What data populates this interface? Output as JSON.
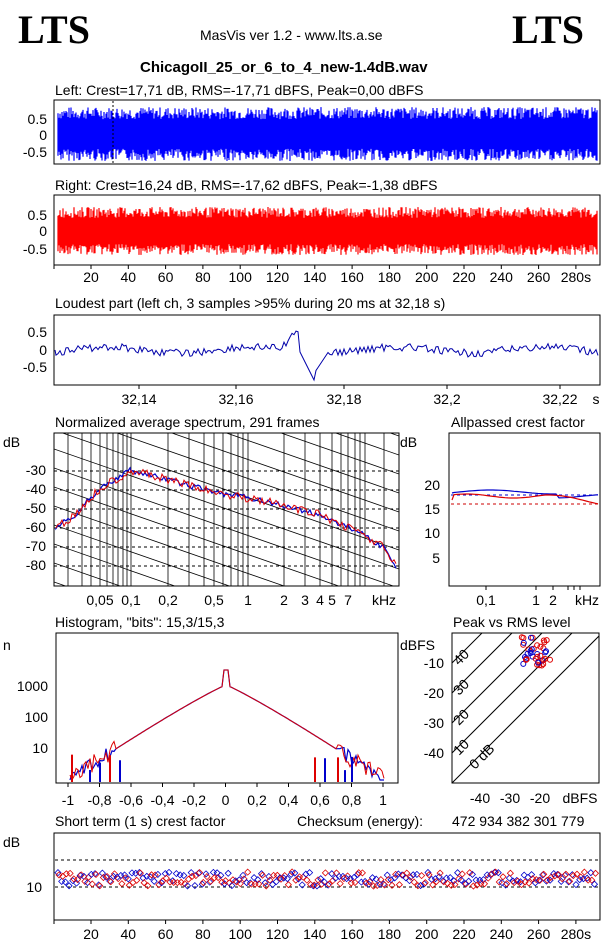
{
  "header": {
    "logo_left": "LTS",
    "logo_right": "LTS",
    "app_title": "MasVis ver 1.2 - www.lts.a.se",
    "file_name": "ChicagoII_25_or_6_to_4_new-1.4dB.wav"
  },
  "left_channel": {
    "title": "Left: Crest=17,71 dB, RMS=-17,71 dBFS, Peak=0,00 dBFS",
    "y_ticks": [
      "0.5",
      "0",
      "-0.5"
    ],
    "color": "#0000ff"
  },
  "right_channel": {
    "title": "Right: Crest=16,24 dB, RMS=-17,62 dBFS, Peak=-1,38 dBFS",
    "y_ticks": [
      "0.5",
      "0",
      "-0.5"
    ],
    "x_ticks": [
      "20",
      "40",
      "60",
      "80",
      "100",
      "120",
      "140",
      "160",
      "180",
      "200",
      "220",
      "240",
      "260",
      "280s"
    ],
    "color": "#ff0000"
  },
  "loudest": {
    "title": "Loudest part (left  ch, 3 samples >95% during 20 ms at 32,18 s)",
    "y_ticks": [
      "0.5",
      "0",
      "-0.5"
    ],
    "x_ticks": [
      "32,14",
      "32,16",
      "32,18",
      "32,2",
      "32,22",
      "s"
    ]
  },
  "spectrum": {
    "title": "Normalized average spectrum, 291 frames",
    "y_unit": "dB",
    "y_ticks": [
      "-30",
      "-40",
      "-50",
      "-60",
      "-70",
      "-80"
    ],
    "x_ticks": [
      "0,05",
      "0,1",
      "0,2",
      "0,5",
      "1",
      "2",
      "3",
      "4",
      "5",
      "7",
      "kHz"
    ]
  },
  "crest_allpass": {
    "title": "Allpassed crest factor",
    "y_unit": "dB",
    "y_ticks": [
      "20",
      "15",
      "10",
      "5"
    ],
    "x_ticks": [
      "0,1",
      "1",
      "2",
      "kHz"
    ]
  },
  "histogram": {
    "title": "Histogram, \"bits\": 15,3/15,3",
    "y_unit": "n",
    "y_ticks": [
      "1000",
      "100",
      "10"
    ],
    "x_ticks": [
      "-1",
      "-0,8",
      "-0,6",
      "-0,4",
      "-0,2",
      "0",
      "0,2",
      "0,4",
      "0,6",
      "0,8",
      "1"
    ]
  },
  "peak_rms": {
    "title": "Peak vs RMS level",
    "y_unit": "dBFS",
    "y_ticks": [
      "-10",
      "-20",
      "-30",
      "-40"
    ],
    "x_ticks": [
      "-40",
      "-30",
      "-20",
      "dBFS"
    ],
    "diagonal_labels": [
      "40",
      "30",
      "20",
      "10",
      "0 dB"
    ]
  },
  "short_term": {
    "title": "Short term (1 s) crest factor",
    "checksum_label": "Checksum (energy):",
    "checksum_value": "472 934 382 301 779",
    "y_unit": "dB",
    "y_ticks": [
      "10"
    ],
    "x_ticks": [
      "20",
      "40",
      "60",
      "80",
      "100",
      "120",
      "140",
      "160",
      "180",
      "200",
      "220",
      "240",
      "260",
      "280s"
    ]
  },
  "chart_data": [
    {
      "type": "area",
      "channel": "left",
      "x_range_s": [
        0,
        290
      ],
      "ylim": [
        -1,
        1
      ],
      "approx_envelope": 0.6,
      "marker_at_s": 32.18
    },
    {
      "type": "area",
      "channel": "right",
      "x_range_s": [
        0,
        290
      ],
      "ylim": [
        -1,
        1
      ],
      "approx_envelope": 0.55
    },
    {
      "type": "line",
      "x_range_s": [
        32.13,
        32.225
      ],
      "ylim": [
        -1,
        1
      ],
      "peak_at_s": 32.18
    },
    {
      "type": "line",
      "x_unit": "kHz",
      "x": [
        0.03,
        0.05,
        0.08,
        0.1,
        0.2,
        0.5,
        1,
        2,
        5,
        10,
        20
      ],
      "y": [
        -62,
        -55,
        -40,
        -33,
        -35,
        -42,
        -46,
        -50,
        -58,
        -68,
        -80
      ],
      "ylim": [
        -90,
        -20
      ]
    },
    {
      "type": "line",
      "x_unit": "kHz",
      "ylim": [
        0,
        25
      ],
      "series": [
        {
          "values": [
            18,
            18.5,
            17.5,
            17,
            17.5
          ]
        },
        {
          "values": [
            17,
            18,
            17,
            16.5,
            16
          ]
        }
      ]
    },
    {
      "type": "line",
      "x_range": [
        -1,
        1
      ],
      "y_scale": "log",
      "peak": 2000
    },
    {
      "type": "scatter",
      "xlim": [
        -50,
        0
      ],
      "ylim": [
        -50,
        0
      ],
      "cluster_x": -18,
      "cluster_y": -5
    },
    {
      "type": "scatter",
      "xlim": [
        0,
        290
      ],
      "approx_value_db": 12
    }
  ]
}
